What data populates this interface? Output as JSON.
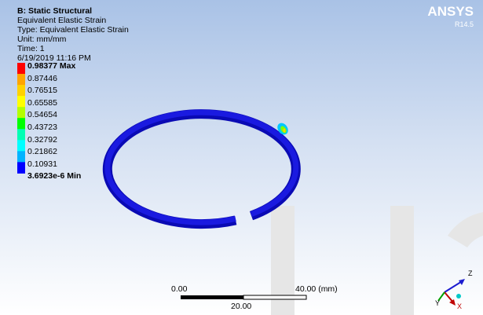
{
  "header": {
    "title": "B: Static Structural",
    "result": "Equivalent Elastic Strain",
    "type": "Type: Equivalent Elastic Strain",
    "unit": "Unit: mm/mm",
    "time": "Time: 1",
    "date": "6/19/2019 11:16 PM"
  },
  "legend": {
    "labels": [
      "0.98377 Max",
      "0.87446",
      "0.76515",
      "0.65585",
      "0.54654",
      "0.43723",
      "0.32792",
      "0.21862",
      "0.10931",
      "3.6923e-6 Min"
    ],
    "colors": [
      "#ff0000",
      "#ffa500",
      "#ffd200",
      "#ffff00",
      "#b4ff00",
      "#00ff00",
      "#00ffb4",
      "#00ffff",
      "#00b4ff",
      "#0000ff"
    ]
  },
  "logo": {
    "name": "ANSYS",
    "version": "R14.5"
  },
  "scale_bar": {
    "start": "0.00",
    "end": "40.00 (mm)",
    "middle": "20.00"
  },
  "triad": {
    "z": "Z",
    "y": "Y",
    "x": "X"
  }
}
